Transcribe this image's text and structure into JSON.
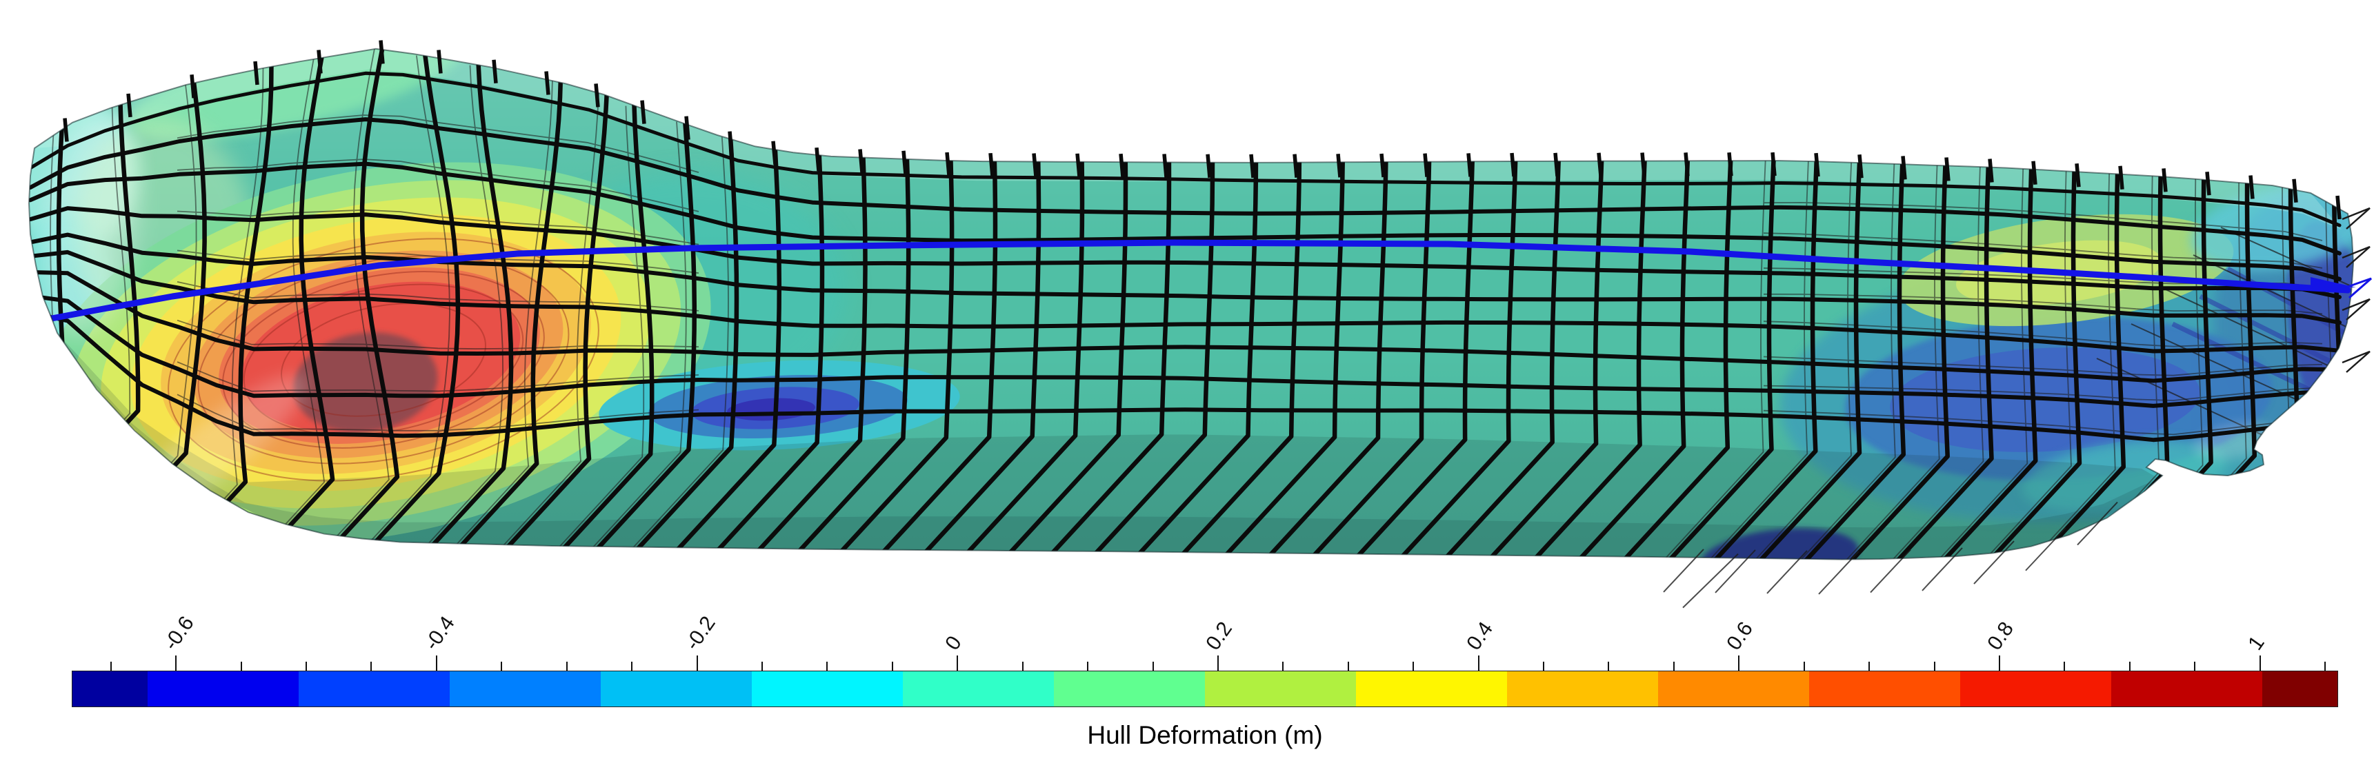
{
  "page": {
    "background": "#ffffff"
  },
  "colorbar": {
    "label": "Hull Deformation (m)",
    "min": -0.68,
    "max": 1.06,
    "major_ticks": [
      -0.6,
      -0.4,
      -0.2,
      0,
      0.2,
      0.4,
      0.6,
      0.8,
      1
    ],
    "tick_labels": [
      "-0.6",
      "-0.4",
      "-0.2",
      "0",
      "0.2",
      "0.4",
      "0.6",
      "0.8",
      "1"
    ],
    "minor_tick_step": 0.05,
    "colors": [
      "#0000A0",
      "#0000EF",
      "#0040FF",
      "#0080FF",
      "#00C0F5",
      "#00F5FF",
      "#30FFC8",
      "#60FF90",
      "#B0F040",
      "#FFF600",
      "#FFC100",
      "#FF8A00",
      "#FF4F00",
      "#F51A00",
      "#C00000",
      "#800000"
    ]
  },
  "chart_data": {
    "type": "heatmap",
    "title": "",
    "colorbar_label": "Hull Deformation (m)",
    "value_range_m": [
      -0.68,
      1.06
    ],
    "tick_values": [
      -0.6,
      -0.4,
      -0.2,
      0,
      0.2,
      0.4,
      0.6,
      0.8,
      1
    ],
    "minor_tick_step": 0.05,
    "n_color_levels": 16,
    "colormap": "jet",
    "scene": "Side view of a deformed 3D ship-hull surface (finite-element result) with a black structural mesh overlay and a thick blue waterline curve; contour colors give local hull deformation in metres",
    "features": [
      {
        "name": "bow-hotspot",
        "location": "forward quarter, around and below the waterline",
        "peak_value_m": 1.06,
        "contours": "concentric green-yellow-orange-red rings with a dark shaded red core"
      },
      {
        "name": "midship-trough",
        "location": "at the bilge just aft of the bow bulge",
        "min_value_m": -0.68,
        "contours": "flattened cyan / steel-blue / dark-blue concentric rings"
      },
      {
        "name": "stern-trough",
        "location": "stern region below the waterline",
        "min_value_m": -0.45,
        "contours": "large teal-blue patch with steel-blue core and navy diagonal streaks near the transom"
      },
      {
        "name": "stern-positive-patch",
        "location": "stern region at the waterline",
        "value_m": 0.2,
        "contours": "yellow-green ellipse"
      },
      {
        "name": "waterline",
        "style": "thick blue polyline running the full hull length, sagging toward bow and stern, ending in a small arrow at the transom"
      },
      {
        "name": "structural-mesh",
        "style": "black deformed frame/stringer grid over the whole hull, with thin undeformed-mesh ghost lines and small spikes protruding past the stern and bottom edges"
      }
    ]
  },
  "figure": {
    "hull_base": "#50BFA5",
    "mesh_color": "#0b0b0b",
    "thin_mesh_color": "#1c1c1c",
    "waterline_color": "#1414E6",
    "outline_color": "rgba(18,40,42,0.55)",
    "deck_tint": "rgba(205,248,235,0.28)",
    "bottom_shade": "rgba(22,55,58,0.16)",
    "bottom_shade2": "rgba(15,45,48,0.14)",
    "hot_ring_outline": "rgba(150,40,30,0.45)",
    "streak_navy": "#2D3FA8",
    "patches": [
      [
        105,
        255,
        95,
        115,
        15,
        "#9FEFE4",
        0.85,
        12
      ],
      [
        85,
        430,
        75,
        125,
        8,
        "#7AE4DA",
        0.9,
        12
      ],
      [
        300,
        700,
        170,
        64,
        -35,
        "#6FD8CC",
        0.8,
        8
      ],
      [
        430,
        122,
        250,
        58,
        -13,
        "#86E6AE",
        0.85,
        8
      ],
      [
        240,
        340,
        130,
        170,
        -10,
        "#C9EFB4",
        0.45,
        16
      ],
      [
        1000,
        420,
        230,
        170,
        0,
        "#45C4B8",
        0.5,
        16
      ],
      [
        545,
        512,
        492,
        265,
        -11,
        "#7CDA9C",
        1,
        0
      ],
      [
        545,
        512,
        448,
        240,
        -11,
        "#AEE77C",
        1,
        0
      ],
      [
        545,
        512,
        404,
        216,
        -11,
        "#D9EC60",
        1,
        0
      ],
      [
        545,
        512,
        360,
        192,
        -11,
        "#F6E44E",
        1,
        0
      ],
      [
        545,
        512,
        316,
        168,
        -11,
        "#F4C44C",
        1,
        0
      ],
      [
        548,
        514,
        272,
        144,
        -11,
        "#F09E4D",
        1,
        0
      ],
      [
        550,
        516,
        236,
        122,
        -11,
        "#EC744E",
        1,
        0
      ],
      [
        552,
        518,
        205,
        104,
        -11,
        "#E85048",
        1,
        0
      ],
      [
        530,
        555,
        105,
        72,
        -8,
        "#8C4A50",
        0.92,
        4
      ],
      [
        1130,
        588,
        262,
        64,
        -3,
        "#3FC4CE",
        1,
        0
      ],
      [
        1128,
        590,
        188,
        45,
        -3,
        "#3884C4",
        1,
        0
      ],
      [
        1124,
        592,
        122,
        30,
        -3,
        "#3A55C8",
        1,
        0
      ],
      [
        1118,
        594,
        64,
        16,
        -3,
        "#3333B4",
        1,
        0
      ],
      [
        3010,
        565,
        430,
        190,
        -4,
        "#3FA3B6",
        0.95,
        8
      ],
      [
        3340,
        470,
        130,
        190,
        0,
        "#3C89B5",
        0.9,
        8
      ],
      [
        2985,
        578,
        310,
        118,
        -3,
        "#3B7CC0",
        0.95,
        4
      ],
      [
        2965,
        580,
        225,
        75,
        -3,
        "#3E68C4",
        1,
        0
      ],
      [
        3378,
        475,
        58,
        155,
        -8,
        "#3A4FB2",
        0.9,
        4
      ],
      [
        2580,
        808,
        115,
        40,
        -6,
        "#2B2E9E",
        0.9,
        4
      ],
      [
        3080,
        690,
        150,
        48,
        -8,
        "#49C0BC",
        0.7,
        8
      ],
      [
        2995,
        392,
        245,
        76,
        -7,
        "#A9D878",
        0.95,
        0
      ],
      [
        2985,
        396,
        150,
        44,
        -7,
        "#C9E56F",
        1,
        0
      ],
      [
        3310,
        330,
        135,
        58,
        -10,
        "#5FC9D9",
        0.8,
        8
      ]
    ]
  }
}
